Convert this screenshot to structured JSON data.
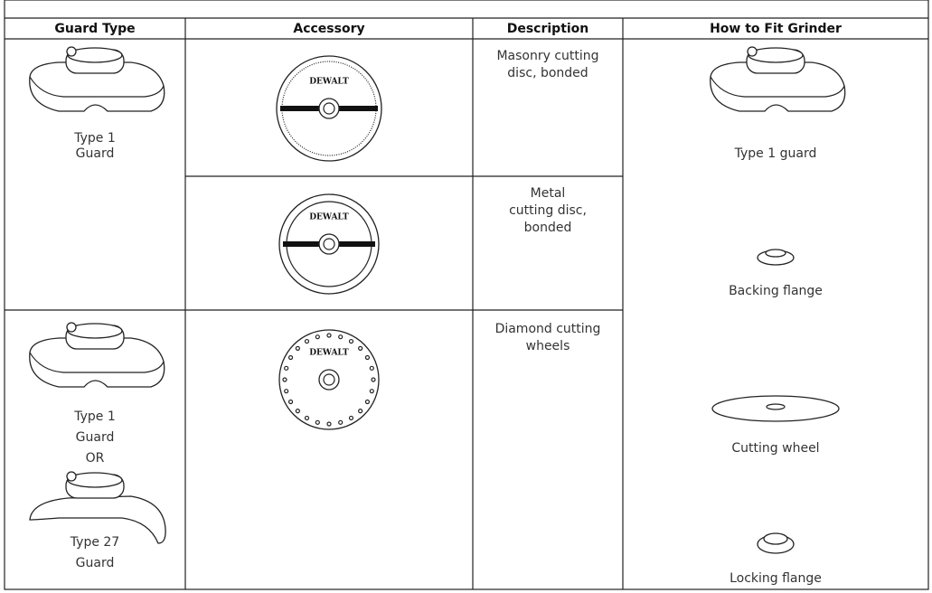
{
  "table": {
    "headers": [
      "Guard Type",
      "Accessory",
      "Description",
      "How to Fit Grinder"
    ],
    "guard_cells": [
      {
        "lines": [
          "Type 1",
          "Guard"
        ]
      },
      {
        "lines": [
          "Type 1",
          "Guard",
          "OR",
          "Type 27",
          "Guard"
        ]
      }
    ],
    "accessories": [
      {
        "brand": "DEWALT",
        "description": [
          "Masonry cutting",
          "disc, bonded"
        ]
      },
      {
        "brand": "DEWALT",
        "description": [
          "Metal",
          "cutting disc,",
          "bonded"
        ]
      },
      {
        "brand": "DEWALT",
        "description": [
          "Diamond cutting",
          "wheels"
        ]
      }
    ],
    "fit_steps": [
      "Type 1 guard",
      "Backing flange",
      "Cutting wheel",
      "Locking flange"
    ]
  }
}
